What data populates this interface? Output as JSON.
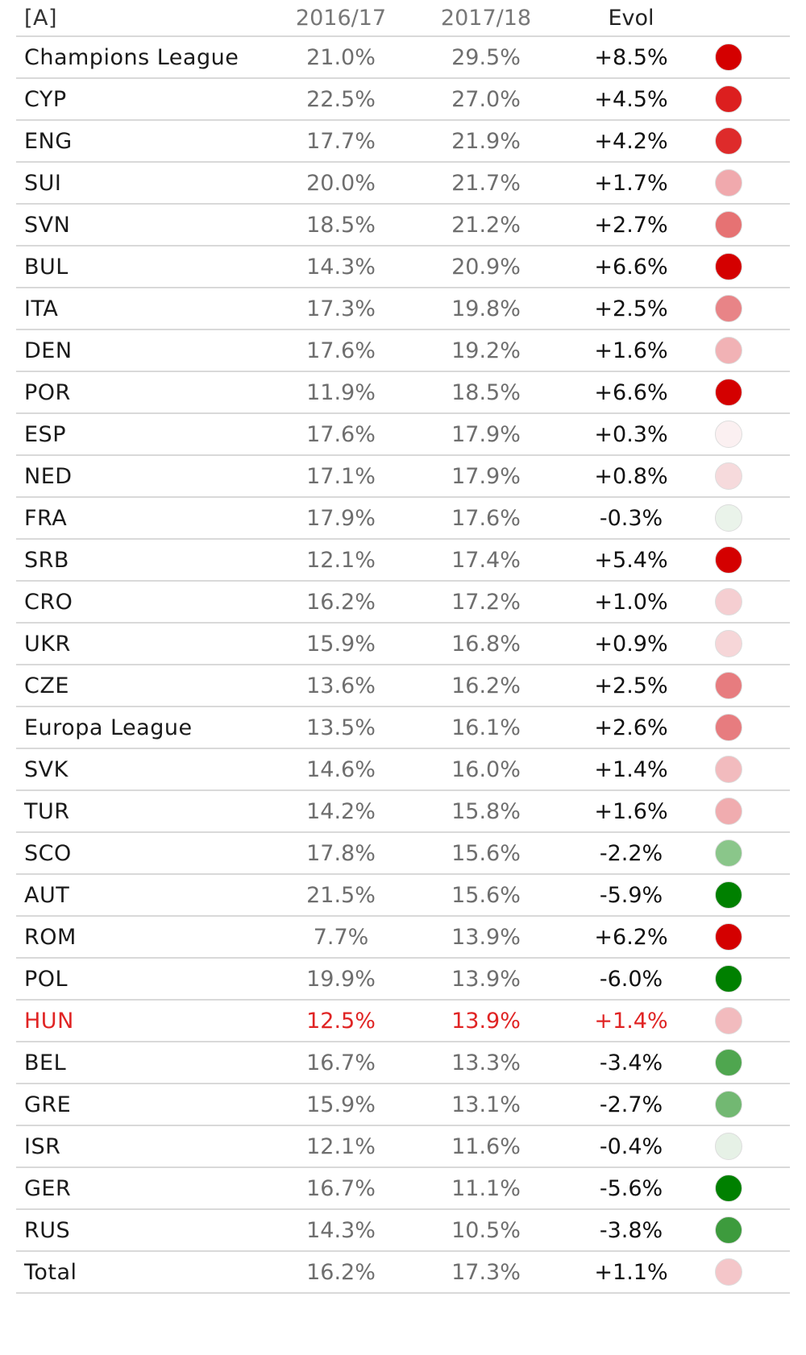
{
  "header": {
    "name": "[A]",
    "col_a": "2016/17",
    "col_b": "2017/18",
    "col_evol": "Evol"
  },
  "highlight": "HUN",
  "colors": {
    "highlight_text": "#e02424",
    "strong_increase": "#d40000",
    "strong_decrease": "#008000"
  },
  "chart_data": {
    "type": "table",
    "columns": [
      "[A]",
      "2016/17",
      "2017/18",
      "Evol"
    ],
    "rows": [
      {
        "name": "Champions League",
        "a": "21.0%",
        "b": "29.5%",
        "evol": "+8.5%",
        "color": "#d40000"
      },
      {
        "name": "CYP",
        "a": "22.5%",
        "b": "27.0%",
        "evol": "+4.5%",
        "color": "#dc1f1f"
      },
      {
        "name": "ENG",
        "a": "17.7%",
        "b": "21.9%",
        "evol": "+4.2%",
        "color": "#de2b2b"
      },
      {
        "name": "SUI",
        "a": "20.0%",
        "b": "21.7%",
        "evol": "+1.7%",
        "color": "#f0a9ad"
      },
      {
        "name": "SVN",
        "a": "18.5%",
        "b": "21.2%",
        "evol": "+2.7%",
        "color": "#e67273"
      },
      {
        "name": "BUL",
        "a": "14.3%",
        "b": "20.9%",
        "evol": "+6.6%",
        "color": "#d40000"
      },
      {
        "name": "ITA",
        "a": "17.3%",
        "b": "19.8%",
        "evol": "+2.5%",
        "color": "#e88487"
      },
      {
        "name": "DEN",
        "a": "17.6%",
        "b": "19.2%",
        "evol": "+1.6%",
        "color": "#f1b2b5"
      },
      {
        "name": "POR",
        "a": "11.9%",
        "b": "18.5%",
        "evol": "+6.6%",
        "color": "#d40000"
      },
      {
        "name": "ESP",
        "a": "17.6%",
        "b": "17.9%",
        "evol": "+0.3%",
        "color": "#fbf0f1"
      },
      {
        "name": "NED",
        "a": "17.1%",
        "b": "17.9%",
        "evol": "+0.8%",
        "color": "#f6dadc"
      },
      {
        "name": "FRA",
        "a": "17.9%",
        "b": "17.6%",
        "evol": "-0.3%",
        "color": "#eaf3ea"
      },
      {
        "name": "SRB",
        "a": "12.1%",
        "b": "17.4%",
        "evol": "+5.4%",
        "color": "#d40000"
      },
      {
        "name": "CRO",
        "a": "16.2%",
        "b": "17.2%",
        "evol": "+1.0%",
        "color": "#f5ced1"
      },
      {
        "name": "UKR",
        "a": "15.9%",
        "b": "16.8%",
        "evol": "+0.9%",
        "color": "#f6d6d8"
      },
      {
        "name": "CZE",
        "a": "13.6%",
        "b": "16.2%",
        "evol": "+2.5%",
        "color": "#e77c7f"
      },
      {
        "name": "Europa League",
        "a": "13.5%",
        "b": "16.1%",
        "evol": "+2.6%",
        "color": "#e77c7f"
      },
      {
        "name": "SVK",
        "a": "14.6%",
        "b": "16.0%",
        "evol": "+1.4%",
        "color": "#f2bbbe"
      },
      {
        "name": "TUR",
        "a": "14.2%",
        "b": "15.8%",
        "evol": "+1.6%",
        "color": "#f0acaf"
      },
      {
        "name": "SCO",
        "a": "17.8%",
        "b": "15.6%",
        "evol": "-2.2%",
        "color": "#8ac68a"
      },
      {
        "name": "AUT",
        "a": "21.5%",
        "b": "15.6%",
        "evol": "-5.9%",
        "color": "#008000"
      },
      {
        "name": "ROM",
        "a": "7.7%",
        "b": "13.9%",
        "evol": "+6.2%",
        "color": "#d40000"
      },
      {
        "name": "POL",
        "a": "19.9%",
        "b": "13.9%",
        "evol": "-6.0%",
        "color": "#008000"
      },
      {
        "name": "HUN",
        "a": "12.5%",
        "b": "13.9%",
        "evol": "+1.4%",
        "color": "#f2bbbe"
      },
      {
        "name": "BEL",
        "a": "16.7%",
        "b": "13.3%",
        "evol": "-3.4%",
        "color": "#4fa64f"
      },
      {
        "name": "GRE",
        "a": "15.9%",
        "b": "13.1%",
        "evol": "-2.7%",
        "color": "#72b872"
      },
      {
        "name": "ISR",
        "a": "12.1%",
        "b": "11.6%",
        "evol": "-0.4%",
        "color": "#e6f1e6"
      },
      {
        "name": "GER",
        "a": "16.7%",
        "b": "11.1%",
        "evol": "-5.6%",
        "color": "#008000"
      },
      {
        "name": "RUS",
        "a": "14.3%",
        "b": "10.5%",
        "evol": "-3.8%",
        "color": "#3d9b3d"
      },
      {
        "name": "Total",
        "a": "16.2%",
        "b": "17.3%",
        "evol": "+1.1%",
        "color": "#f4c6c9"
      }
    ]
  }
}
